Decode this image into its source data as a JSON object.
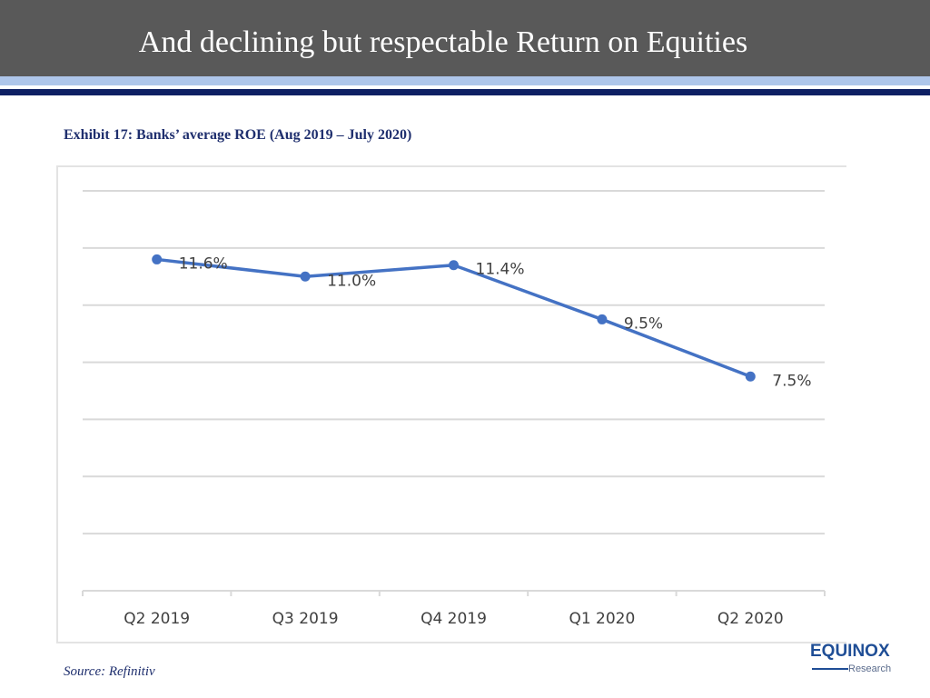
{
  "header": {
    "title": "And declining but respectable Return on Equities"
  },
  "exhibit": {
    "title": "Exhibit 17: Banks’ average ROE (Aug 2019 – July 2020)"
  },
  "source": "Source: Refinitiv",
  "logo": {
    "main": "EQUINOX",
    "sub": "Research"
  },
  "colors": {
    "header_bg": "#595959",
    "line": "#4472c4",
    "stripe_dark": "#0d1f63",
    "stripe_light": "#aec6ea",
    "title_text": "#1f2f6e"
  },
  "chart_data": {
    "type": "line",
    "title": "",
    "xlabel": "",
    "ylabel": "",
    "categories": [
      "Q2 2019",
      "Q3 2019",
      "Q4 2019",
      "Q1 2020",
      "Q2 2020"
    ],
    "series": [
      {
        "values": [
          11.6,
          11.0,
          11.4,
          9.5,
          7.5
        ],
        "labels": [
          "11.6%",
          "11.0%",
          "11.4%",
          "9.5%",
          "7.5%"
        ]
      }
    ],
    "ylim": [
      0,
      14
    ],
    "grid": true,
    "legend": "none"
  }
}
